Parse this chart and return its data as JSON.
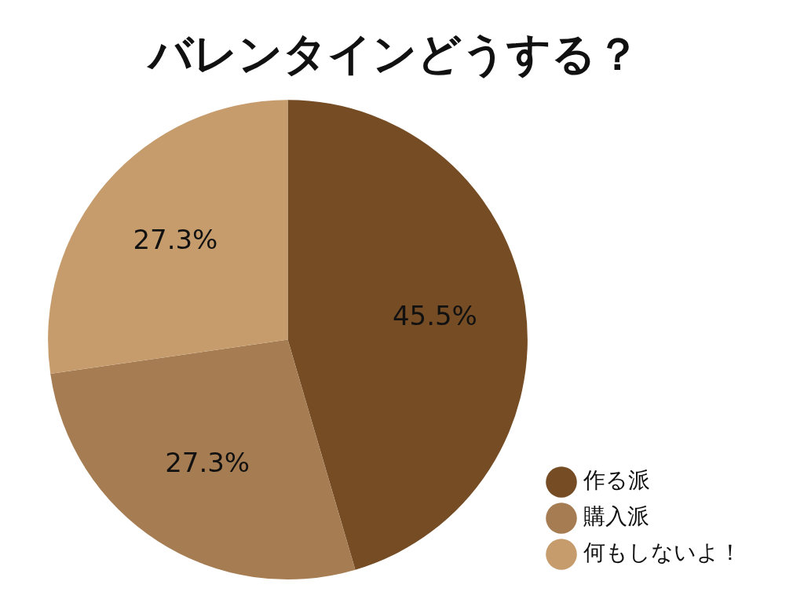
{
  "chart_data": {
    "type": "pie",
    "title": "バレンタインどうする？",
    "categories": [
      "作る派",
      "購入派",
      "何もしないよ！"
    ],
    "values": [
      45.5,
      27.3,
      27.3
    ],
    "colors": [
      "#754c24",
      "#a67c52",
      "#c69c6d"
    ],
    "value_labels": [
      "45.5%",
      "27.3%",
      "27.3%"
    ],
    "legend": "bottom right"
  }
}
